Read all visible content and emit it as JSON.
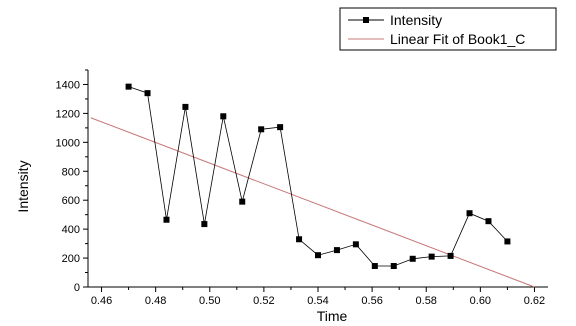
{
  "chart_data": {
    "type": "line",
    "xlabel": "Time",
    "ylabel": "Intensity",
    "xlim": [
      0.455,
      0.625
    ],
    "ylim": [
      0,
      1500
    ],
    "x_ticks": [
      "0.46",
      "0.48",
      "0.50",
      "0.52",
      "0.54",
      "0.56",
      "0.58",
      "0.60",
      "0.62"
    ],
    "y_ticks": [
      "0",
      "200",
      "400",
      "600",
      "800",
      "1000",
      "1200",
      "1400"
    ],
    "grid": false,
    "legend_position": "top-right",
    "legend": [
      "Intensity",
      "Linear Fit of Book1_C"
    ],
    "series": [
      {
        "name": "Intensity",
        "style": "line-with-square-markers",
        "color": "#000000",
        "x": [
          0.47,
          0.477,
          0.484,
          0.491,
          0.498,
          0.505,
          0.512,
          0.519,
          0.526,
          0.533,
          0.54,
          0.547,
          0.554,
          0.561,
          0.568,
          0.575,
          0.582,
          0.589,
          0.596,
          0.603,
          0.61
        ],
        "y": [
          1385,
          1340,
          465,
          1245,
          435,
          1180,
          590,
          1090,
          1105,
          330,
          220,
          255,
          295,
          145,
          145,
          195,
          210,
          215,
          510,
          455,
          315
        ]
      },
      {
        "name": "Linear Fit of Book1_C",
        "style": "line",
        "color": "#c87878",
        "x": [
          0.456,
          0.62
        ],
        "y": [
          1170,
          0
        ]
      }
    ]
  }
}
